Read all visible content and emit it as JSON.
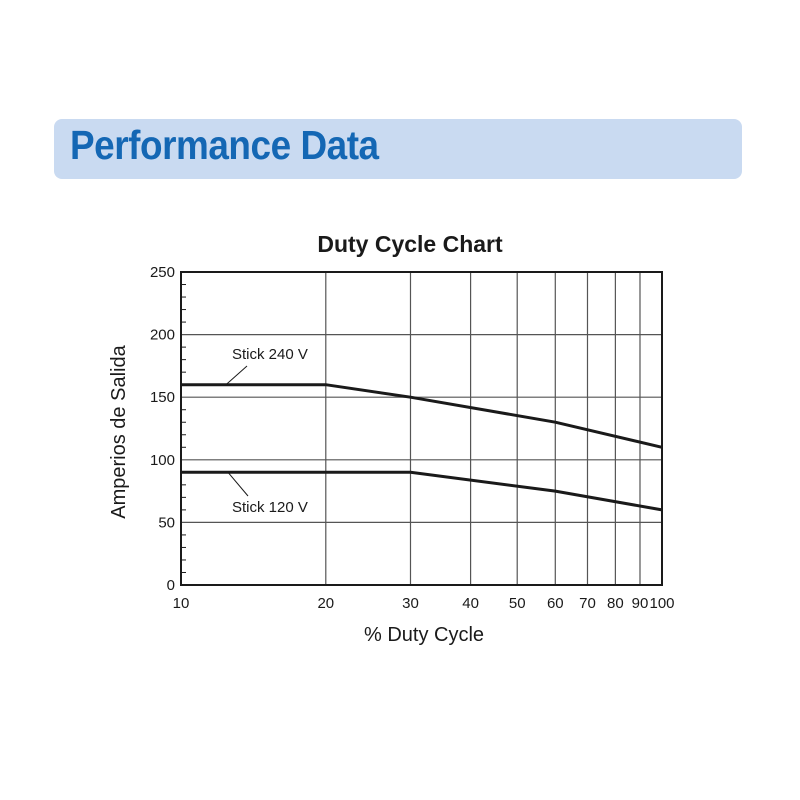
{
  "header": {
    "title": "Performance Data"
  },
  "colors": {
    "banner_bg": "#c9daf1",
    "banner_text": "#1467b4",
    "line": "#1a1a1a",
    "grid": "#555555"
  },
  "chart_data": {
    "type": "line",
    "title": "Duty Cycle Chart",
    "xlabel": "% Duty Cycle",
    "ylabel": "Amperios de Salida",
    "x_scale": "log",
    "xlim": [
      10,
      100
    ],
    "ylim": [
      0,
      250
    ],
    "x_ticks": [
      10,
      20,
      30,
      40,
      50,
      60,
      70,
      80,
      90,
      100
    ],
    "y_ticks": [
      0,
      50,
      100,
      150,
      200,
      250
    ],
    "y_minor_step": 10,
    "grid": true,
    "series": [
      {
        "name": "Stick 240 V",
        "x": [
          10,
          20,
          30,
          60,
          100
        ],
        "y": [
          160,
          160,
          150,
          130,
          110
        ]
      },
      {
        "name": "Stick 120 V",
        "x": [
          10,
          30,
          60,
          100
        ],
        "y": [
          90,
          90,
          75,
          60
        ]
      }
    ]
  }
}
